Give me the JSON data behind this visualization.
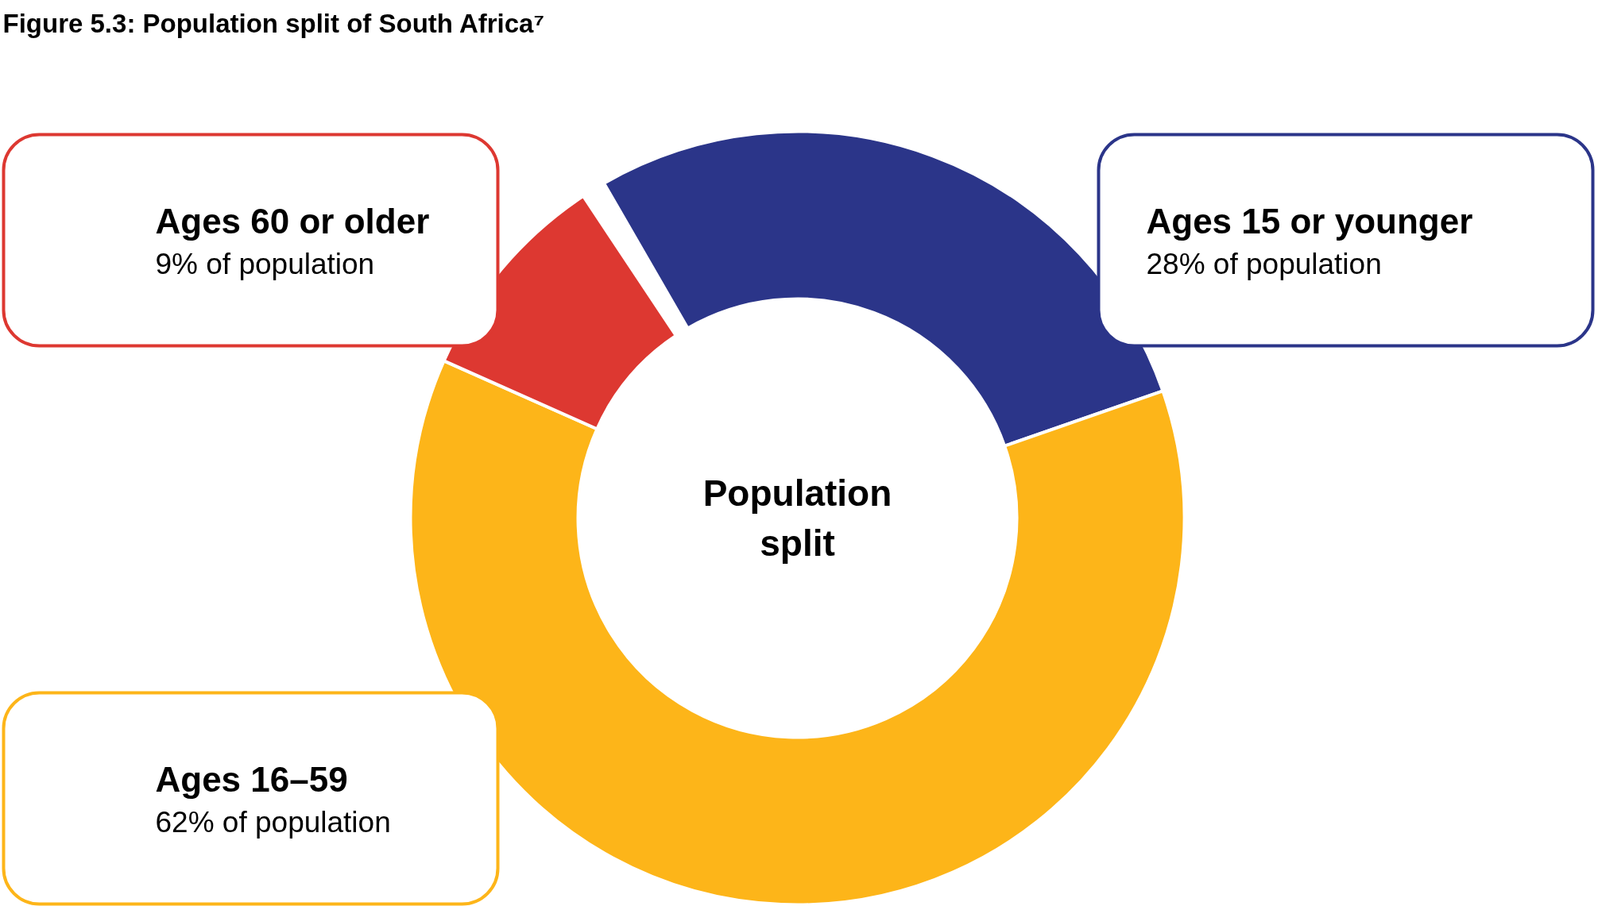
{
  "chart_data": {
    "type": "donut",
    "title": "Figure 5.3: Population split of South Africa⁷",
    "categories": [
      "Ages 15 or younger",
      "Ages 16–59",
      "Ages 60 or older"
    ],
    "values": [
      28,
      62,
      9
    ],
    "colors": [
      "#2b3589",
      "#fdb519",
      "#dd3831"
    ],
    "value_labels": [
      "28% of population",
      "62% of population",
      "9% of population"
    ],
    "annotations": [
      "Population split"
    ]
  }
}
